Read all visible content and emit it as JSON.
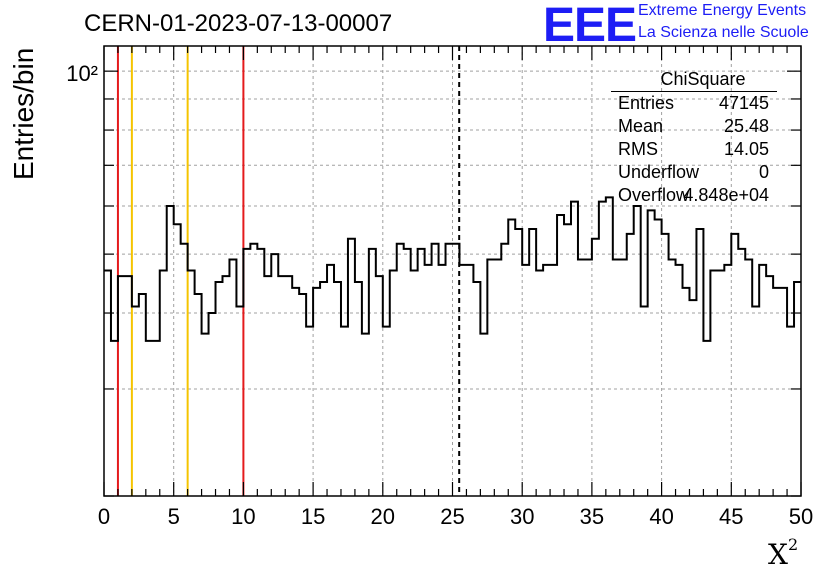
{
  "header": {
    "title": "CERN-01-2023-07-13-00007",
    "logo_text": "EEE",
    "logo_line1": "Extreme Energy Events",
    "logo_line2": "La Scienza nelle Scuole"
  },
  "stats_box": {
    "title": "ChiSquare",
    "rows": [
      {
        "key": "Entries",
        "value": "47145"
      },
      {
        "key": "Mean",
        "value": "25.48"
      },
      {
        "key": "RMS",
        "value": "14.05"
      },
      {
        "key": "Underflow",
        "value": "0"
      },
      {
        "key": "Overflow",
        "value": "4.848e+04"
      }
    ]
  },
  "chart_data": {
    "type": "histogram",
    "title": "CERN-01-2023-07-13-00007",
    "xlabel": "X²",
    "ylabel": "Entries/bin",
    "xlim": [
      0,
      50
    ],
    "ylim": [
      20,
      110
    ],
    "log_y": true,
    "grid": true,
    "bin_width": 0.5,
    "x_ticks": [
      0,
      5,
      10,
      15,
      20,
      25,
      30,
      35,
      40,
      45,
      50
    ],
    "x_tick_labels": [
      "0",
      "5",
      "10",
      "15",
      "20",
      "25",
      "30",
      "35",
      "40",
      "45",
      "50"
    ],
    "y_tick_labels": [
      {
        "value": 100,
        "label": "10²"
      }
    ],
    "values": [
      47,
      36,
      46,
      46,
      41,
      43,
      36,
      36,
      47,
      60,
      56,
      52,
      47,
      43,
      37,
      40,
      45,
      46,
      49,
      41,
      51,
      52,
      51,
      46,
      50,
      46,
      46,
      44,
      43,
      38,
      44,
      45,
      48,
      45,
      38,
      53,
      45,
      37,
      51,
      46,
      38,
      47,
      52,
      51,
      47,
      51,
      48,
      52,
      48,
      52,
      52,
      48,
      48,
      45,
      37,
      49,
      49,
      52,
      57,
      55,
      48,
      55,
      47,
      48,
      48,
      58,
      56,
      61,
      49,
      49,
      53,
      61,
      62,
      49,
      49,
      54,
      60,
      41,
      59,
      57,
      54,
      49,
      48,
      44,
      42,
      55,
      36,
      47,
      47,
      48,
      54,
      51,
      49,
      41,
      48,
      46,
      44,
      44,
      38,
      45
    ],
    "vertical_lines": [
      {
        "x": 1,
        "color": "#e41a1c",
        "style": "solid"
      },
      {
        "x": 2,
        "color": "#f5c400",
        "style": "solid"
      },
      {
        "x": 6,
        "color": "#f5c400",
        "style": "solid"
      },
      {
        "x": 10,
        "color": "#e41a1c",
        "style": "solid"
      },
      {
        "x": 25.48,
        "color": "#000000",
        "style": "dashed"
      }
    ]
  }
}
